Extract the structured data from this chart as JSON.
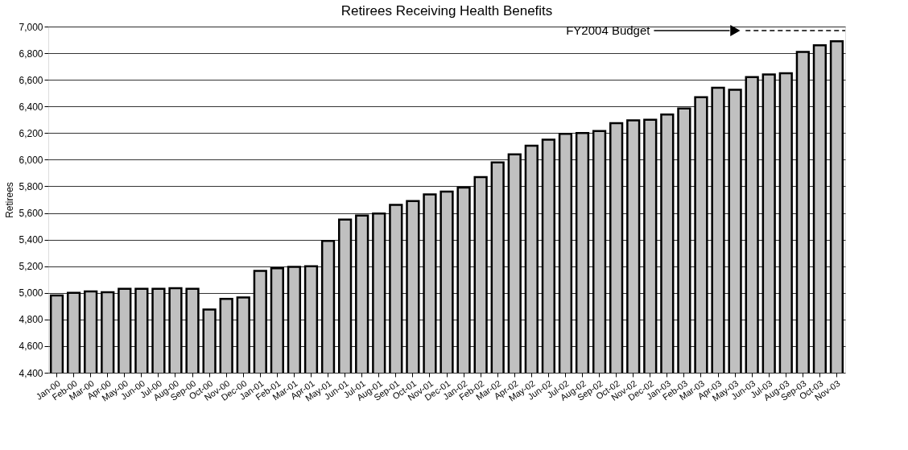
{
  "chart_data": {
    "type": "bar",
    "title": "Retirees Receiving Health Benefits",
    "ylabel": "Retirees",
    "categories": [
      "Jan-00",
      "Feb-00",
      "Mar-00",
      "Apr-00",
      "May-00",
      "Jun-00",
      "Jul-00",
      "Aug-00",
      "Sep-00",
      "Oct-00",
      "Nov-00",
      "Dec-00",
      "Jan-01",
      "Feb-01",
      "Mar-01",
      "Apr-01",
      "May-01",
      "Jun-01",
      "Jul-01",
      "Aug-01",
      "Sep-01",
      "Oct-01",
      "Nov-01",
      "Dec-01",
      "Jan-02",
      "Feb-02",
      "Mar-02",
      "Apr-02",
      "May-02",
      "Jun-02",
      "Jul-02",
      "Aug-02",
      "Sep-02",
      "Oct-02",
      "Nov-02",
      "Dec-02",
      "Jan-03",
      "Feb-03",
      "Mar-03",
      "Apr-03",
      "May-03",
      "Jun-03",
      "Jul-03",
      "Aug-03",
      "Sep-03",
      "Oct-03",
      "Nov-03"
    ],
    "values": [
      4980,
      5000,
      5010,
      5005,
      5030,
      5030,
      5030,
      5035,
      5030,
      4875,
      4955,
      4965,
      5165,
      5185,
      5195,
      5200,
      5390,
      5550,
      5580,
      5595,
      5660,
      5690,
      5740,
      5760,
      5790,
      5870,
      5980,
      6040,
      6105,
      6150,
      6195,
      6200,
      6215,
      6275,
      6295,
      6300,
      6340,
      6385,
      6470,
      6540,
      6525,
      6620,
      6640,
      6650,
      6810,
      6860,
      6890
    ],
    "color": "#c0c0c0",
    "ylim": [
      4400,
      7000
    ],
    "yticks": [
      {
        "value": 4400,
        "label": "4,400"
      },
      {
        "value": 4600,
        "label": "4,600"
      },
      {
        "value": 4800,
        "label": "4,800"
      },
      {
        "value": 5000,
        "label": "5,000"
      },
      {
        "value": 5200,
        "label": "5,200"
      },
      {
        "value": 5400,
        "label": "5,400"
      },
      {
        "value": 5600,
        "label": "5,600"
      },
      {
        "value": 5800,
        "label": "5,800"
      },
      {
        "value": 6000,
        "label": "6,000"
      },
      {
        "value": 6200,
        "label": "6,200"
      },
      {
        "value": 6400,
        "label": "6,400"
      },
      {
        "value": 6600,
        "label": "6,600"
      },
      {
        "value": 6800,
        "label": "6,800"
      },
      {
        "value": 7000,
        "label": "7,000"
      }
    ],
    "grid": "y",
    "ref_lines": [
      {
        "axis": "y",
        "value": 6970,
        "label": "FY2004 Budget",
        "line_style": "dashed",
        "color": "#000000"
      }
    ]
  }
}
